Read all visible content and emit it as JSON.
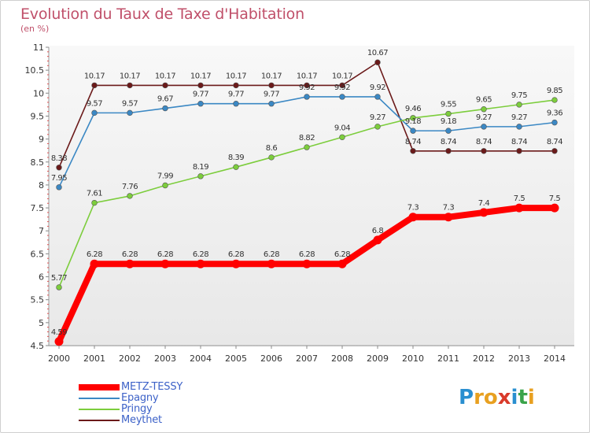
{
  "title": "Evolution du Taux de Taxe d'Habitation",
  "subtitle": "(en %)",
  "logo": {
    "letters": [
      {
        "ch": "P",
        "color": "#2a8fd0"
      },
      {
        "ch": "r",
        "color": "#e8a020"
      },
      {
        "ch": "o",
        "color": "#e8a020"
      },
      {
        "ch": "x",
        "color": "#d93a2b"
      },
      {
        "ch": "i",
        "color": "#2a8fd0"
      },
      {
        "ch": "t",
        "color": "#3aa34a"
      },
      {
        "ch": "i",
        "color": "#e8a020"
      }
    ]
  },
  "chart_data": {
    "type": "line",
    "title": "Evolution du Taux de Taxe d'Habitation",
    "ylabel": "(en %)",
    "xlabel": "",
    "x": [
      "2000",
      "2001",
      "2002",
      "2003",
      "2004",
      "2005",
      "2006",
      "2007",
      "2008",
      "2009",
      "2010",
      "2011",
      "2012",
      "2013",
      "2014"
    ],
    "ylim": [
      4.5,
      11
    ],
    "yticks": [
      "4.5",
      "5",
      "5.5",
      "6",
      "6.5",
      "7",
      "7.5",
      "8",
      "8.5",
      "9",
      "9.5",
      "10",
      "10.5",
      "11"
    ],
    "grid": false,
    "legend_position": "bottom-left",
    "series": [
      {
        "name": "METZ-TESSY",
        "color": "#ff0000",
        "values": [
          4.59,
          6.28,
          6.28,
          6.28,
          6.28,
          6.28,
          6.28,
          6.28,
          6.28,
          6.8,
          7.3,
          7.3,
          7.4,
          7.5,
          7.5
        ],
        "labels": [
          "4.59",
          "6.28",
          "6.28",
          "6.28",
          "6.28",
          "6.28",
          "6.28",
          "6.28",
          "6.28",
          "6.8",
          "7.3",
          "7.3",
          "7.4",
          "7.5",
          "7.5"
        ]
      },
      {
        "name": "Epagny",
        "color": "#3b88c4",
        "values": [
          7.95,
          9.57,
          9.57,
          9.67,
          9.77,
          9.77,
          9.77,
          9.92,
          9.92,
          9.92,
          9.18,
          9.18,
          9.27,
          9.27,
          9.36
        ],
        "labels": [
          "7.95",
          "9.57",
          "9.57",
          "9.67",
          "9.77",
          "9.77",
          "9.77",
          "9.92",
          "9.92",
          "9.92",
          "9.18",
          "9.18",
          "9.27",
          "9.27",
          "9.36"
        ]
      },
      {
        "name": "Pringy",
        "color": "#7ccd3c",
        "values": [
          5.77,
          7.61,
          7.76,
          7.99,
          8.19,
          8.39,
          8.6,
          8.82,
          9.04,
          9.27,
          9.46,
          9.55,
          9.65,
          9.75,
          9.85
        ],
        "labels": [
          "5.77",
          "7.61",
          "7.76",
          "7.99",
          "8.19",
          "8.39",
          "8.6",
          "8.82",
          "9.04",
          "9.27",
          "9.46",
          "9.55",
          "9.65",
          "9.75",
          "9.85"
        ]
      },
      {
        "name": "Meythet",
        "color": "#6b1a1a",
        "values": [
          8.38,
          10.17,
          10.17,
          10.17,
          10.17,
          10.17,
          10.17,
          10.17,
          10.17,
          10.67,
          8.74,
          8.74,
          8.74,
          8.74,
          8.74
        ],
        "labels": [
          "8.38",
          "10.17",
          "10.17",
          "10.17",
          "10.17",
          "10.17",
          "10.17",
          "10.17",
          "10.17",
          "10.67",
          "8.74",
          "8.74",
          "8.74",
          "8.74",
          "8.74"
        ]
      }
    ]
  }
}
